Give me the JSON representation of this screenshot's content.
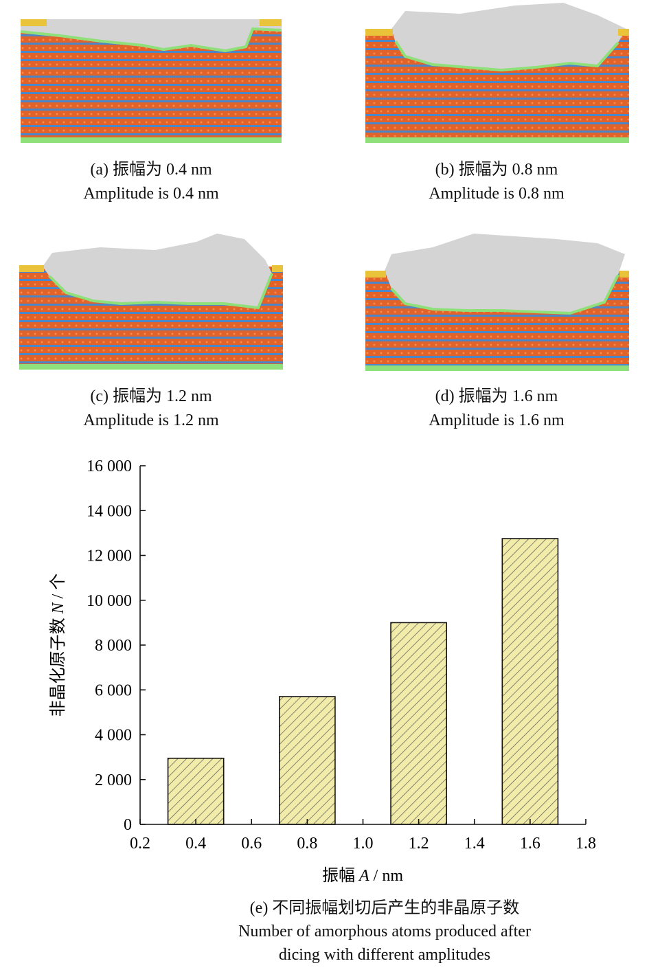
{
  "panels": [
    {
      "id": "a",
      "caption_cn": "(a) 振幅为 0.4 nm",
      "caption_en": "Amplitude is 0.4 nm"
    },
    {
      "id": "b",
      "caption_cn": "(b) 振幅为 0.8 nm",
      "caption_en": "Amplitude is 0.8 nm"
    },
    {
      "id": "c",
      "caption_cn": "(c) 振幅为 1.2 nm",
      "caption_en": "Amplitude is 1.2 nm"
    },
    {
      "id": "d",
      "caption_cn": "(d) 振幅为 1.6 nm",
      "caption_en": "Amplitude is 1.6 nm"
    }
  ],
  "colors": {
    "substrate_orange": "#e2632a",
    "substrate_blue": "#4a86c8",
    "amorphous_gray": "#d4d4d4",
    "interface_green": "#8fe07a",
    "bar_fill": "#f2ecaa",
    "bar_hatch": "#555555"
  },
  "chart_data": {
    "type": "bar",
    "title": "",
    "xlabel_prefix": "振幅 ",
    "xlabel_var": "A",
    "xlabel_unit": " / nm",
    "ylabel_prefix": "非晶化原子数 ",
    "ylabel_var": "N",
    "ylabel_unit": " / 个",
    "x": [
      0.4,
      0.8,
      1.2,
      1.6
    ],
    "values": [
      2950,
      5700,
      9000,
      12750
    ],
    "bar_width": 0.2,
    "xlim": [
      0.2,
      1.8
    ],
    "ylim": [
      0,
      16000
    ],
    "xticks": [
      "0.2",
      "0.4",
      "0.6",
      "0.8",
      "1.0",
      "1.2",
      "1.4",
      "1.6",
      "1.8"
    ],
    "yticks": [
      "0",
      "2 000",
      "4 000",
      "6 000",
      "8 000",
      "10 000",
      "12 000",
      "14 000",
      "16 000"
    ],
    "grid": false,
    "legend": "none"
  },
  "figure_caption": {
    "cn": "(e) 不同振幅划切后产生的非晶原子数",
    "en_line1": "Number of amorphous atoms produced after",
    "en_line2": "dicing with different amplitudes"
  }
}
